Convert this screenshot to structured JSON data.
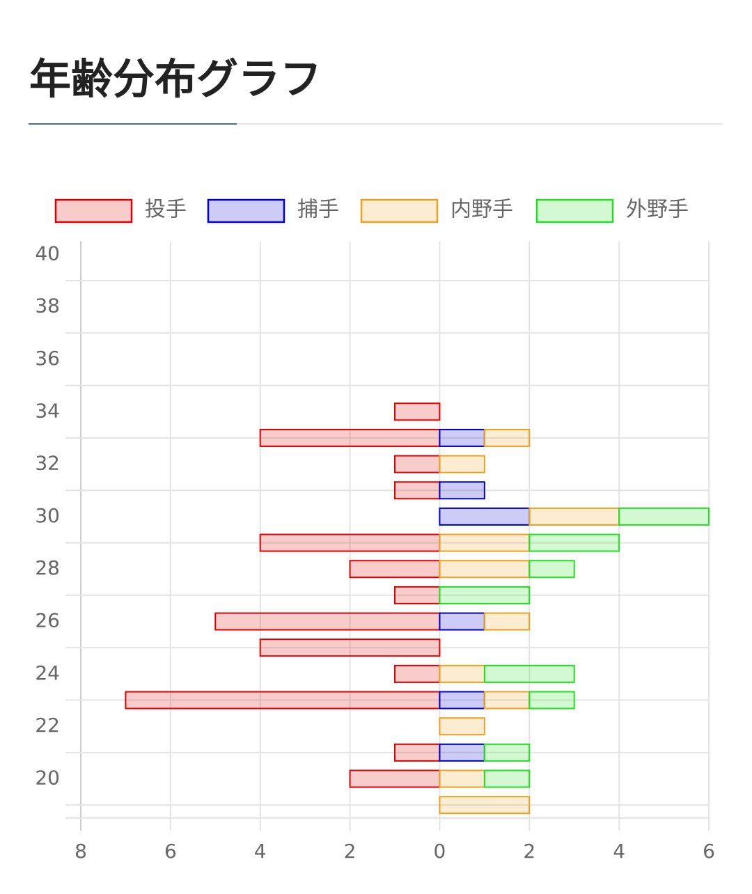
{
  "chart_data": {
    "type": "stacked-hbar",
    "title": "年齢分布グラフ",
    "categories": [
      40,
      null,
      38,
      null,
      36,
      null,
      34,
      null,
      32,
      null,
      30,
      null,
      28,
      null,
      26,
      null,
      24,
      null,
      22,
      null,
      20,
      null
    ],
    "series": [
      {
        "name": "投手",
        "color": "#e00000",
        "values": [
          0,
          0,
          0,
          0,
          0,
          0,
          -1,
          -4,
          -1,
          -1,
          0,
          -4,
          -2,
          -1,
          -5,
          -4,
          -1,
          -7,
          0,
          -1,
          -2,
          0
        ]
      },
      {
        "name": "捕手",
        "color": "#0000d0",
        "values": [
          0,
          0,
          0,
          0,
          0,
          0,
          0,
          1,
          0,
          1,
          2,
          0,
          0,
          0,
          1,
          0,
          0,
          1,
          0,
          1,
          0,
          0
        ]
      },
      {
        "name": "内野手",
        "color": "#f0a020",
        "values": [
          0,
          0,
          0,
          0,
          0,
          0,
          0,
          1,
          1,
          0,
          2,
          2,
          2,
          0,
          1,
          0,
          1,
          1,
          1,
          0,
          1,
          2
        ]
      },
      {
        "name": "外野手",
        "color": "#20e020",
        "values": [
          0,
          0,
          0,
          0,
          0,
          0,
          0,
          0,
          0,
          0,
          2,
          2,
          1,
          2,
          0,
          0,
          2,
          1,
          0,
          1,
          1,
          0
        ]
      }
    ],
    "xlim": [
      -8,
      6
    ],
    "xticks": [
      {
        "value": -8,
        "label": "8"
      },
      {
        "value": -6,
        "label": "6"
      },
      {
        "value": -4,
        "label": "4"
      },
      {
        "value": -2,
        "label": "2"
      },
      0,
      2,
      4,
      6
    ],
    "grid": true,
    "legend": "top"
  }
}
